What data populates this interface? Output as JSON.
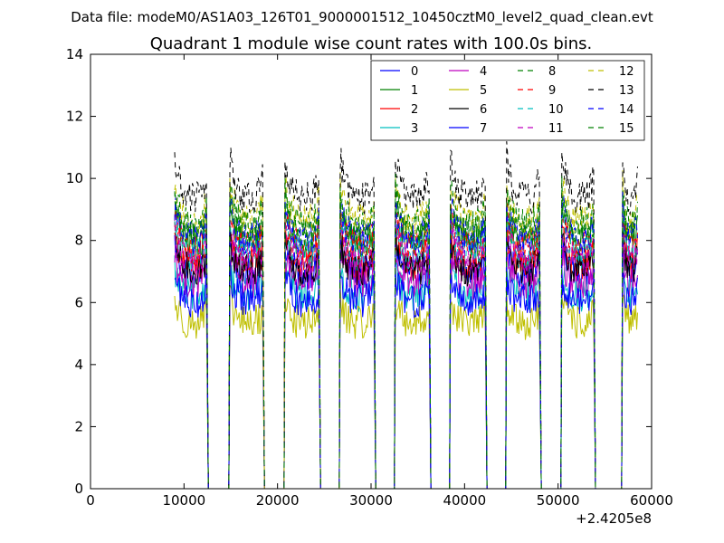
{
  "suptitle": "Data file: modeM0/AS1A03_126T01_9000001512_10450cztM0_level2_quad_clean.evt",
  "chart_data": {
    "type": "line",
    "title": "Quadrant 1 module wise count rates with 100.0s bins.",
    "xlabel": "",
    "ylabel": "",
    "x_offset_label": "+2.4205e8",
    "xlim": [
      0,
      60000
    ],
    "ylim": [
      0,
      14
    ],
    "xticks": [
      0,
      10000,
      20000,
      30000,
      40000,
      50000,
      60000
    ],
    "yticks": [
      0,
      2,
      4,
      6,
      8,
      10,
      12,
      14
    ],
    "grid": false,
    "legend_position": "top-right",
    "segments": [
      [
        9000,
        12400
      ],
      [
        14900,
        18400
      ],
      [
        20800,
        24400
      ],
      [
        26700,
        30300
      ],
      [
        32600,
        36200
      ],
      [
        38500,
        42200
      ],
      [
        44500,
        48000
      ],
      [
        50400,
        53800
      ],
      [
        56900,
        58500
      ]
    ],
    "zero_gaps": [
      [
        12600,
        14800
      ],
      [
        18600,
        20700
      ],
      [
        24600,
        26600
      ],
      [
        30500,
        32500
      ],
      [
        36400,
        38400
      ],
      [
        42400,
        44400
      ],
      [
        48200,
        50300
      ],
      [
        54000,
        56800
      ]
    ],
    "series": [
      {
        "name": "0",
        "color": "#0000ff",
        "style": "solid",
        "mean": 6.9
      },
      {
        "name": "1",
        "color": "#008000",
        "style": "solid",
        "mean": 7.9
      },
      {
        "name": "2",
        "color": "#ff0000",
        "style": "solid",
        "mean": 7.2
      },
      {
        "name": "3",
        "color": "#00bfbf",
        "style": "solid",
        "mean": 6.2
      },
      {
        "name": "4",
        "color": "#bf00bf",
        "style": "solid",
        "mean": 6.6
      },
      {
        "name": "5",
        "color": "#bfbf00",
        "style": "solid",
        "mean": 5.3
      },
      {
        "name": "6",
        "color": "#000000",
        "style": "solid",
        "mean": 7.0
      },
      {
        "name": "7",
        "color": "#0000ff",
        "style": "solid",
        "mean": 6.0
      },
      {
        "name": "8",
        "color": "#008000",
        "style": "dashed",
        "mean": 8.1
      },
      {
        "name": "9",
        "color": "#ff0000",
        "style": "dashed",
        "mean": 7.7
      },
      {
        "name": "10",
        "color": "#00bfbf",
        "style": "dashed",
        "mean": 7.5
      },
      {
        "name": "11",
        "color": "#bf00bf",
        "style": "dashed",
        "mean": 7.3
      },
      {
        "name": "12",
        "color": "#bfbf00",
        "style": "dashed",
        "mean": 8.6
      },
      {
        "name": "13",
        "color": "#000000",
        "style": "dashed",
        "mean": 9.3
      },
      {
        "name": "14",
        "color": "#0000ff",
        "style": "dashed",
        "mean": 8.0
      },
      {
        "name": "15",
        "color": "#008000",
        "style": "dashed",
        "mean": 8.4
      }
    ]
  }
}
